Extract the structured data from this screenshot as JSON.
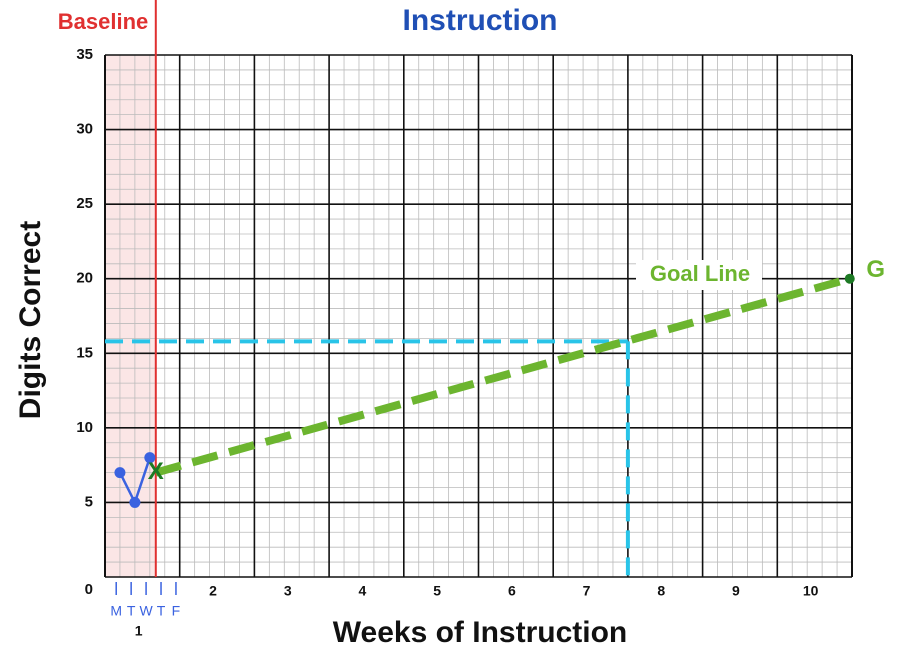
{
  "chart_data": {
    "type": "line",
    "title": "Instruction",
    "baseline_label": "Baseline",
    "xlabel": "Weeks of Instruction",
    "ylabel": "Digits Correct",
    "categories": [
      "1",
      "2",
      "3",
      "4",
      "5",
      "6",
      "7",
      "8",
      "9",
      "10"
    ],
    "days": [
      "M",
      "T",
      "W",
      "T",
      "F"
    ],
    "xlim": [
      0,
      10
    ],
    "ylim": [
      0,
      35
    ],
    "yticks": [
      0,
      5,
      10,
      15,
      20,
      25,
      30,
      35
    ],
    "baseline_x": 0.68,
    "baseline_color": "#e03030",
    "series": [
      {
        "color": "#3a62e0",
        "x": [
          0.2,
          0.4,
          0.6
        ],
        "values": [
          7,
          5,
          8
        ]
      },
      {
        "name": "Goal Line",
        "color": "#6cb52f",
        "x": [
          0.68,
          9.97
        ],
        "values": [
          7,
          20
        ],
        "point_labels": [
          "X",
          "G"
        ]
      }
    ],
    "guide": {
      "color": "#29c4e8",
      "x": 7.0,
      "y": 15.8
    },
    "grid": true
  }
}
